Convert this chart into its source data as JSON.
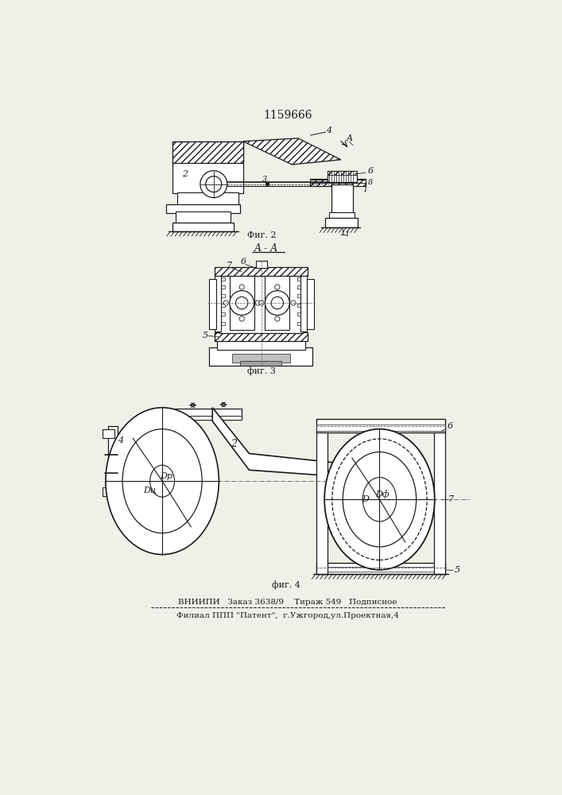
{
  "patent_number": "1159666",
  "fig2_label": "Фиг. 2",
  "fig3_label": "фиг. 3",
  "fig4_label": "фиг. 4",
  "section_label": "A - A",
  "footer_line1": "ВНИИПИ   Заказ 3638/9    Тираж 549   Подписное",
  "footer_line2": "Филиал ППП \"Патент\",  г.Ужгород,ул.Проектная,4",
  "bg_color": "#f0efe8",
  "line_color": "#1a1a1a"
}
